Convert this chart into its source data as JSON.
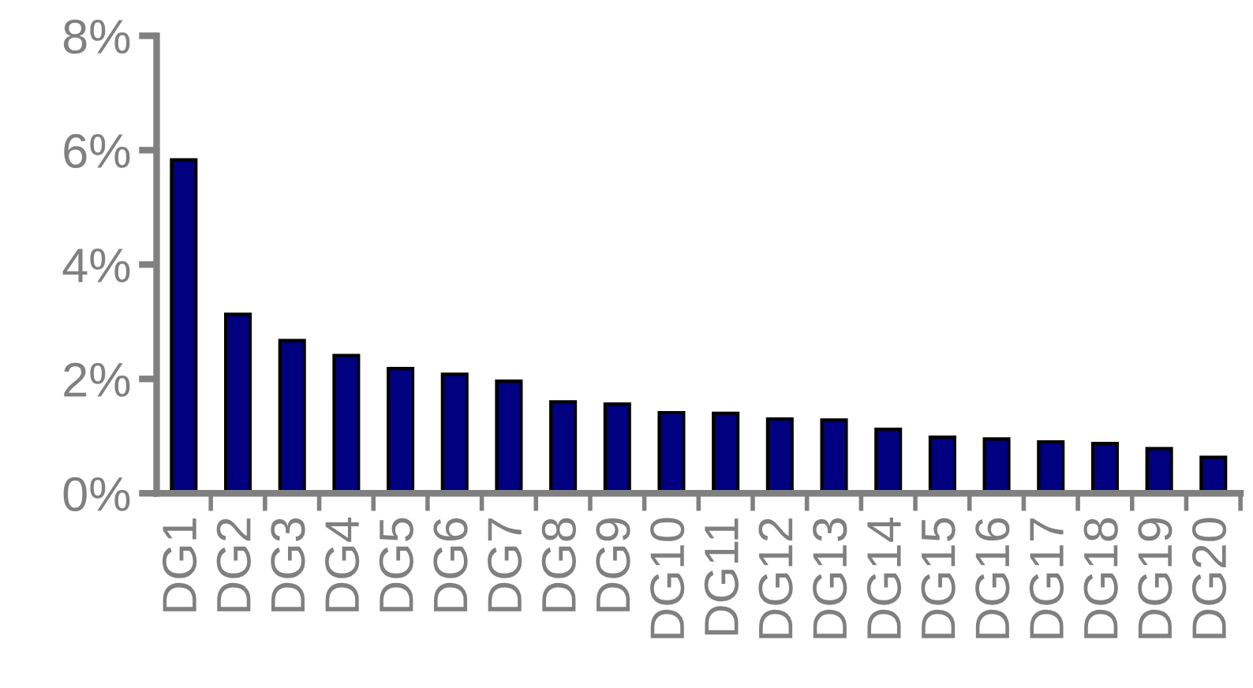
{
  "chart_data": {
    "type": "bar",
    "categories": [
      "DG1",
      "DG2",
      "DG3",
      "DG4",
      "DG5",
      "DG6",
      "DG7",
      "DG8",
      "DG9",
      "DG10",
      "DG11",
      "DG12",
      "DG13",
      "DG14",
      "DG15",
      "DG16",
      "DG17",
      "DG18",
      "DG19",
      "DG20"
    ],
    "values": [
      5.83,
      3.13,
      2.67,
      2.41,
      2.18,
      2.08,
      1.96,
      1.6,
      1.56,
      1.41,
      1.4,
      1.3,
      1.28,
      1.12,
      0.98,
      0.95,
      0.9,
      0.87,
      0.78,
      0.63
    ],
    "color": "#000080",
    "ylim": [
      0,
      8
    ],
    "yticks": [
      {
        "value": 0,
        "label": "0%"
      },
      {
        "value": 2,
        "label": "2%"
      },
      {
        "value": 4,
        "label": "4%"
      },
      {
        "value": 6,
        "label": "6%"
      },
      {
        "value": 8,
        "label": "8%"
      }
    ],
    "grid": false,
    "legend": false
  }
}
